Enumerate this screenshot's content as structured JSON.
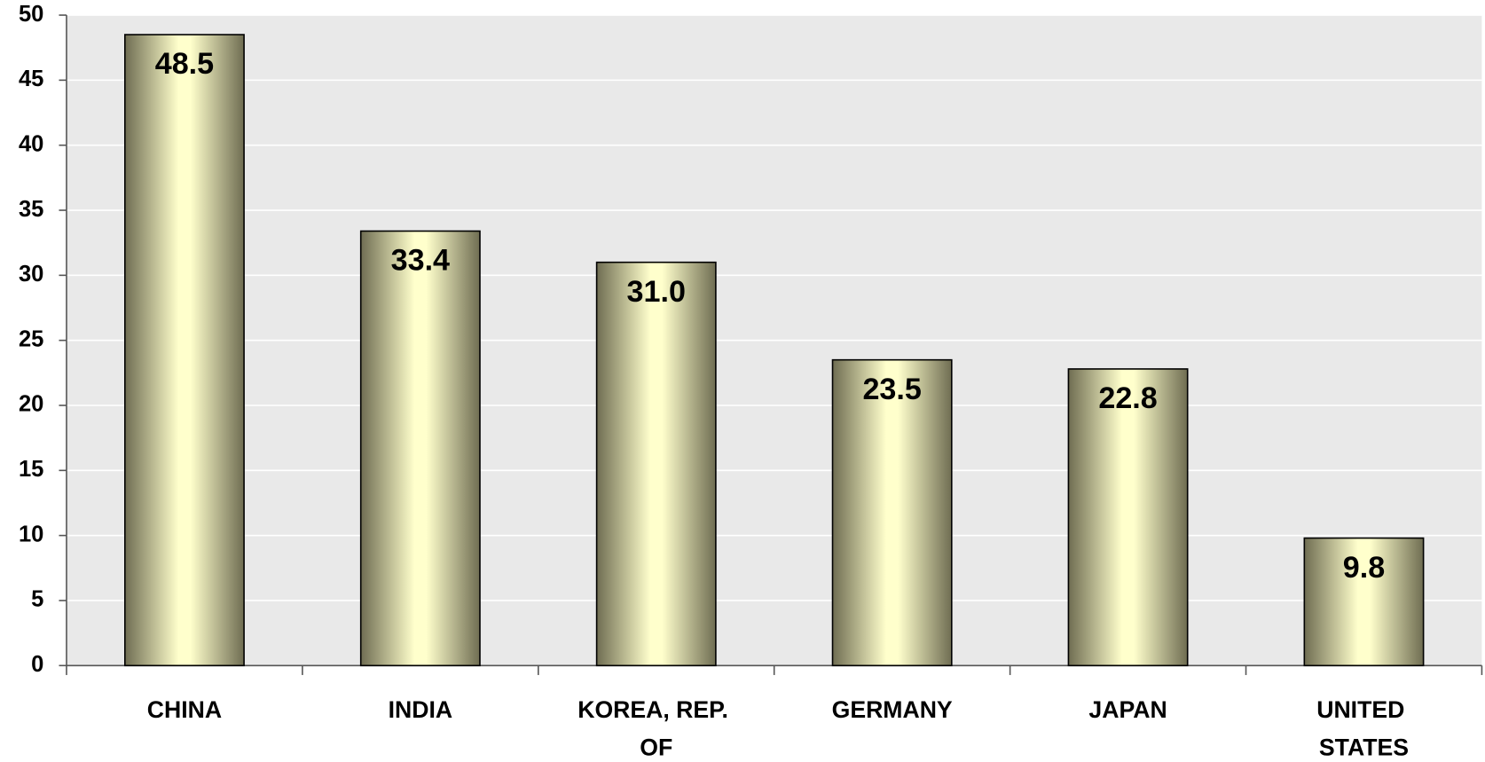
{
  "chart_data": {
    "type": "bar",
    "categories": [
      "CHINA",
      "INDIA",
      "KOREA, REP. OF",
      "GERMANY",
      "JAPAN",
      "UNITED STATES"
    ],
    "values": [
      48.5,
      33.4,
      31.0,
      23.5,
      22.8,
      9.8
    ],
    "value_labels": [
      "48.5",
      "33.4",
      "31.0",
      "23.5",
      "22.8",
      "9.8"
    ],
    "ylim": [
      0,
      50
    ],
    "yticks": [
      0,
      5,
      10,
      15,
      20,
      25,
      30,
      35,
      40,
      45,
      50
    ],
    "grid": true
  }
}
